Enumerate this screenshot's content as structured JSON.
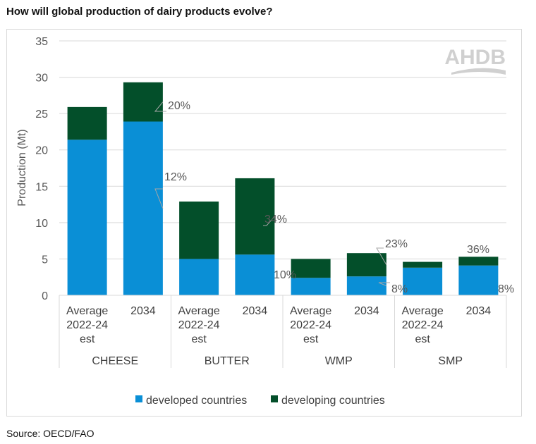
{
  "title": "How will global production of dairy products evolve?",
  "source": "Source: OECD/FAO",
  "logo_text": "AHDB",
  "chart_data": {
    "type": "bar",
    "stacked": true,
    "ylabel": "Production (Mt)",
    "ylim": [
      0,
      35
    ],
    "yticks": [
      0,
      5,
      10,
      15,
      20,
      25,
      30,
      35
    ],
    "grid": true,
    "legend_position": "bottom",
    "groups": [
      "CHEESE",
      "BUTTER",
      "WMP",
      "SMP"
    ],
    "categories": [
      [
        "Average",
        "2022-24",
        "est"
      ],
      [
        "2034"
      ],
      [
        "Average",
        "2022-24",
        "est"
      ],
      [
        "2034"
      ],
      [
        "Average",
        "2022-24",
        "est"
      ],
      [
        "2034"
      ],
      [
        "Average",
        "2022-24",
        "est"
      ],
      [
        "2034"
      ]
    ],
    "series": [
      {
        "name": "developed countries",
        "color": "#0a8fd6",
        "values": [
          21.4,
          23.9,
          5.0,
          5.6,
          2.4,
          2.6,
          3.8,
          4.1
        ]
      },
      {
        "name": "developing countries",
        "color": "#034f2a",
        "values": [
          4.5,
          5.4,
          7.9,
          10.5,
          2.6,
          3.2,
          0.8,
          1.2
        ]
      }
    ],
    "annotations": [
      {
        "text": "20%",
        "bar": 1,
        "series": 1
      },
      {
        "text": "12%",
        "bar": 1,
        "series": 0
      },
      {
        "text": "34%",
        "bar": 3,
        "series": 1
      },
      {
        "text": "10%",
        "bar": 4,
        "series": 0
      },
      {
        "text": "23%",
        "bar": 5,
        "series": 1
      },
      {
        "text": "8%",
        "bar": 5,
        "series": 0
      },
      {
        "text": "36%",
        "bar": 7,
        "series": 1
      },
      {
        "text": "8%",
        "bar": 7,
        "series": 0
      }
    ]
  }
}
